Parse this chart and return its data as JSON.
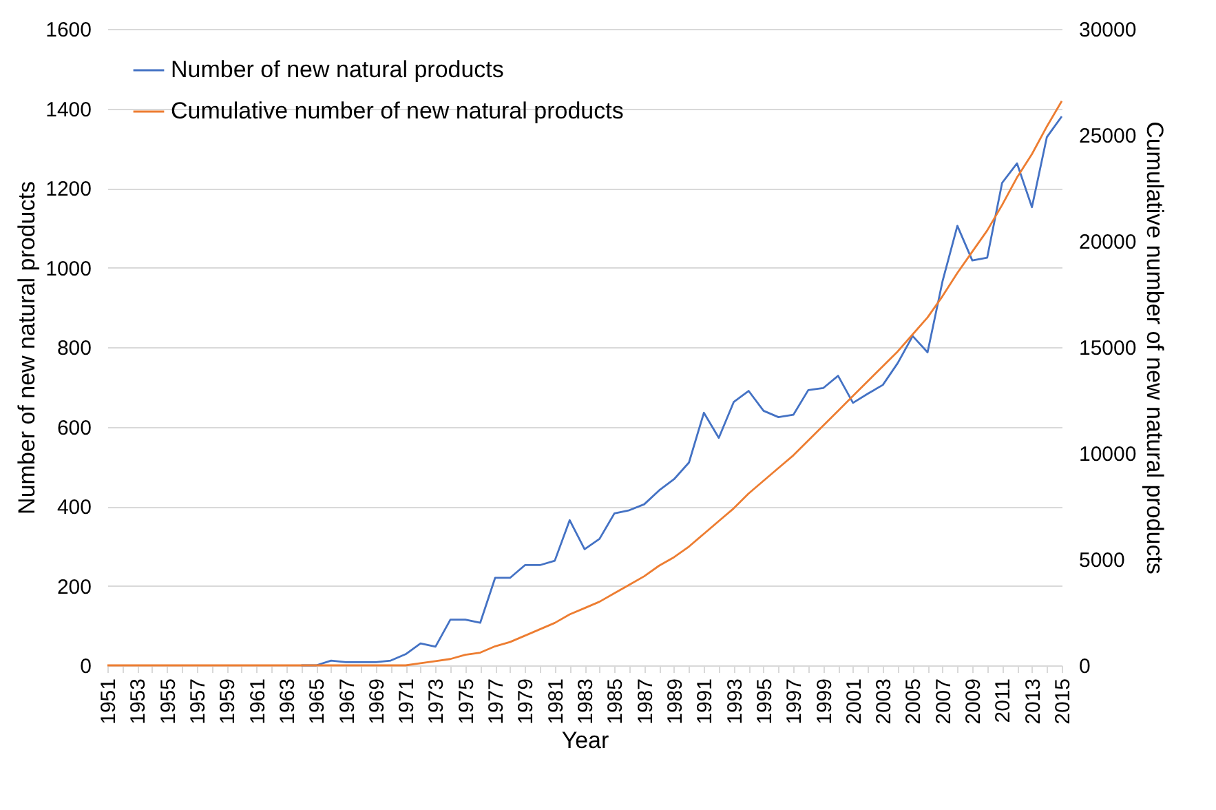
{
  "chart_data": {
    "type": "line",
    "xlabel": "Year",
    "ylabel": "Number of new natural products",
    "y2label": "Cumulative number of new natural products",
    "categories": [
      "1951",
      null,
      "1953",
      null,
      "1955",
      null,
      "1957",
      null,
      "1959",
      null,
      "1961",
      null,
      "1963",
      null,
      "1965",
      null,
      "1967",
      null,
      "1969",
      null,
      "1971",
      null,
      "1973",
      null,
      "1975",
      null,
      "1977",
      null,
      "1979",
      null,
      "1981",
      null,
      "1983",
      null,
      "1985",
      null,
      "1987",
      null,
      "1989",
      null,
      "1991",
      null,
      "1993",
      null,
      "1995",
      null,
      "1997",
      null,
      "1999",
      null,
      "2001",
      null,
      "2003",
      null,
      "2005",
      null,
      "2007",
      null,
      "2009",
      null,
      "2011",
      null,
      "2013",
      null,
      "2015"
    ],
    "series": [
      {
        "name": "Number of new natural products",
        "color": "#4472c4",
        "values": [
          null,
          null,
          null,
          null,
          null,
          null,
          null,
          null,
          null,
          null,
          null,
          null,
          null,
          0,
          0,
          12,
          8,
          8,
          8,
          12,
          28,
          55,
          47,
          115,
          115,
          107,
          220,
          220,
          252,
          252,
          263,
          365,
          292,
          318,
          382,
          390,
          405,
          440,
          468,
          510,
          635,
          572,
          662,
          690,
          640,
          624,
          630,
          692,
          697,
          728,
          660,
          683,
          705,
          760,
          828,
          787,
          965,
          1105,
          1018,
          1025,
          1213,
          1262,
          1152,
          1328,
          1380
        ]
      },
      {
        "name": "Cumulative number of new natural products",
        "color": "#ed7d31",
        "axis": "y2",
        "values": [
          0,
          0,
          0,
          0,
          0,
          0,
          0,
          0,
          0,
          0,
          0,
          0,
          0,
          0,
          0,
          0,
          0,
          0,
          0,
          0,
          0,
          100,
          200,
          300,
          500,
          600,
          900,
          1100,
          1400,
          1700,
          2000,
          2400,
          2700,
          3000,
          3400,
          3800,
          4200,
          4700,
          5100,
          5600,
          6200,
          6800,
          7400,
          8100,
          8700,
          9300,
          9900,
          10600,
          11300,
          12000,
          12700,
          13400,
          14100,
          14800,
          15600,
          16400,
          17400,
          18500,
          19500,
          20500,
          21700,
          23000,
          24100,
          25400,
          26600
        ]
      }
    ],
    "ylim": [
      0,
      1600
    ],
    "yticks": [
      0,
      200,
      400,
      600,
      800,
      1000,
      1200,
      1400,
      1600
    ],
    "y2lim": [
      0,
      30000
    ],
    "y2ticks": [
      0,
      5000,
      10000,
      15000,
      20000,
      25000,
      30000
    ],
    "grid": "y",
    "legend": "top left"
  }
}
